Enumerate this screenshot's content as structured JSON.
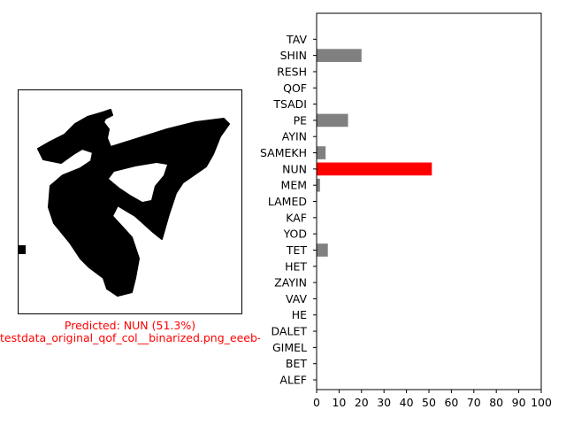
{
  "left_panel": {
    "prediction_caption": "Predicted: NUN (51.3%)",
    "file_caption": "testdata_original_qof_col__binarized.png_eeeb-e-b-ebe"
  },
  "colors": {
    "highlight": "#ff0000",
    "bar": "#808080",
    "caption": "#ff0000"
  },
  "chart_data": {
    "type": "bar",
    "orientation": "horizontal",
    "categories": [
      "ALEF",
      "BET",
      "GIMEL",
      "DALET",
      "HE",
      "VAV",
      "ZAYIN",
      "HET",
      "TET",
      "YOD",
      "KAF",
      "LAMED",
      "MEM",
      "NUN",
      "SAMEKH",
      "AYIN",
      "PE",
      "TSADI",
      "QOF",
      "RESH",
      "SHIN",
      "TAV"
    ],
    "values": [
      0,
      0,
      0,
      0,
      0,
      0,
      0,
      0,
      5,
      0,
      0,
      0,
      1.5,
      51.3,
      4,
      0,
      14,
      0,
      0,
      0,
      20,
      0
    ],
    "highlight_category": "NUN",
    "xlim": [
      0,
      100
    ],
    "xticks": [
      0,
      10,
      20,
      30,
      40,
      50,
      60,
      70,
      80,
      90,
      100
    ],
    "title": "",
    "xlabel": "",
    "ylabel": ""
  }
}
